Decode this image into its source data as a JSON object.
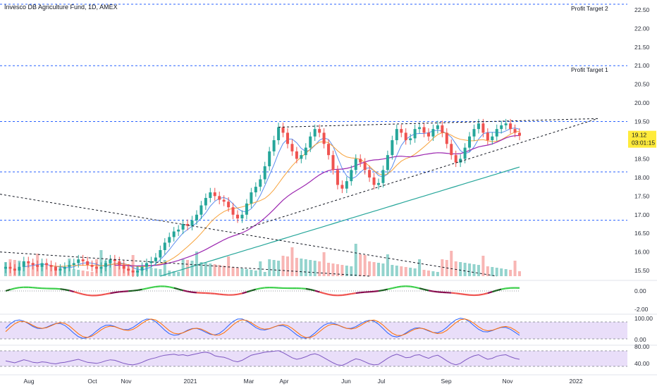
{
  "chart_data": {
    "type": "candlestick",
    "title": "Invesco DB Agriculture Fund, 1D, AMEX",
    "x_ticks": [
      "Aug",
      "Oct",
      "Nov",
      "2021",
      "Mar",
      "Apr",
      "Jun",
      "Jul",
      "Sep",
      "Nov",
      "2022"
    ],
    "y_ticks": [
      "22.50",
      "22.00",
      "21.50",
      "21.00",
      "20.50",
      "20.00",
      "19.50",
      "18.50",
      "18.00",
      "17.50",
      "17.00",
      "16.50",
      "16.00",
      "15.50"
    ],
    "y_range": [
      15.35,
      22.65
    ],
    "last_price": "19.12",
    "countdown": "03:01:15",
    "horizontal_levels": [
      {
        "value": 22.65,
        "label": "Profit Target 2"
      },
      {
        "value": 21.0,
        "label": "Profit Target 1"
      },
      {
        "value": 19.5,
        "label": ""
      },
      {
        "value": 18.15,
        "label": ""
      },
      {
        "value": 16.85,
        "label": ""
      }
    ],
    "price_close": [
      15.6,
      15.55,
      15.5,
      15.6,
      15.75,
      15.7,
      15.65,
      15.6,
      15.7,
      15.65,
      15.6,
      15.5,
      15.55,
      15.6,
      15.65,
      15.7,
      15.8,
      15.75,
      15.65,
      15.6,
      15.55,
      15.6,
      15.7,
      15.8,
      15.75,
      15.65,
      15.55,
      15.5,
      15.45,
      15.5,
      15.6,
      15.7,
      15.75,
      15.85,
      16.05,
      16.25,
      16.4,
      16.55,
      16.6,
      16.75,
      16.7,
      16.85,
      17.0,
      17.25,
      17.45,
      17.6,
      17.5,
      17.4,
      17.35,
      17.2,
      17.0,
      16.9,
      17.0,
      17.3,
      17.6,
      17.75,
      17.95,
      18.3,
      18.7,
      19.0,
      19.35,
      19.2,
      18.9,
      18.7,
      18.5,
      18.6,
      18.8,
      19.1,
      19.3,
      19.2,
      18.9,
      18.6,
      18.2,
      17.8,
      17.7,
      17.9,
      18.2,
      18.5,
      18.4,
      18.2,
      18.0,
      17.8,
      17.85,
      18.2,
      18.6,
      19.0,
      19.3,
      19.2,
      19.0,
      19.05,
      19.3,
      19.35,
      19.2,
      19.1,
      19.3,
      19.4,
      19.2,
      18.9,
      18.6,
      18.4,
      18.5,
      18.8,
      19.1,
      19.3,
      19.45,
      19.2,
      19.0,
      19.1,
      19.3,
      19.4,
      19.45,
      19.3,
      19.2,
      19.12
    ],
    "indicator_rsi": [
      52,
      50,
      48,
      51,
      54,
      52,
      49,
      48,
      50,
      49,
      47,
      46,
      48,
      49,
      51,
      53,
      55,
      52,
      49,
      48,
      47,
      49,
      52,
      54,
      53,
      50,
      47,
      45,
      44,
      46,
      49,
      53,
      56,
      58,
      61,
      63,
      64,
      65,
      63,
      64,
      62,
      64,
      66,
      68,
      69,
      67,
      62,
      60,
      59,
      56,
      52,
      50,
      53,
      58,
      63,
      65,
      67,
      69,
      70,
      71,
      72,
      68,
      63,
      58,
      55,
      57,
      60,
      64,
      66,
      63,
      58,
      53,
      48,
      44,
      43,
      47,
      52,
      56,
      54,
      50,
      46,
      44,
      45,
      51,
      57,
      62,
      65,
      62,
      58,
      59,
      63,
      64,
      60,
      57,
      61,
      63,
      58,
      52,
      47,
      44,
      47,
      53,
      58,
      62,
      64,
      59,
      55,
      57,
      61,
      63,
      64,
      60,
      57,
      55
    ]
  },
  "axes": {
    "osc_ticks": [
      "0.00",
      "-2.00"
    ],
    "stoch_ticks": [
      "100.00",
      "0.00"
    ],
    "rsi_ticks": [
      "80.00",
      "40.00"
    ]
  },
  "colors": {
    "up": "#26a69a",
    "down": "#ef5350",
    "ma_fast": "#5b8def",
    "ma_mid": "#f7a23a",
    "ma_slow": "#9c27b0",
    "ma_long": "#26a69a",
    "level": "#2962ff",
    "band": "#e9def9",
    "price_tag": "#ffeb3b"
  }
}
